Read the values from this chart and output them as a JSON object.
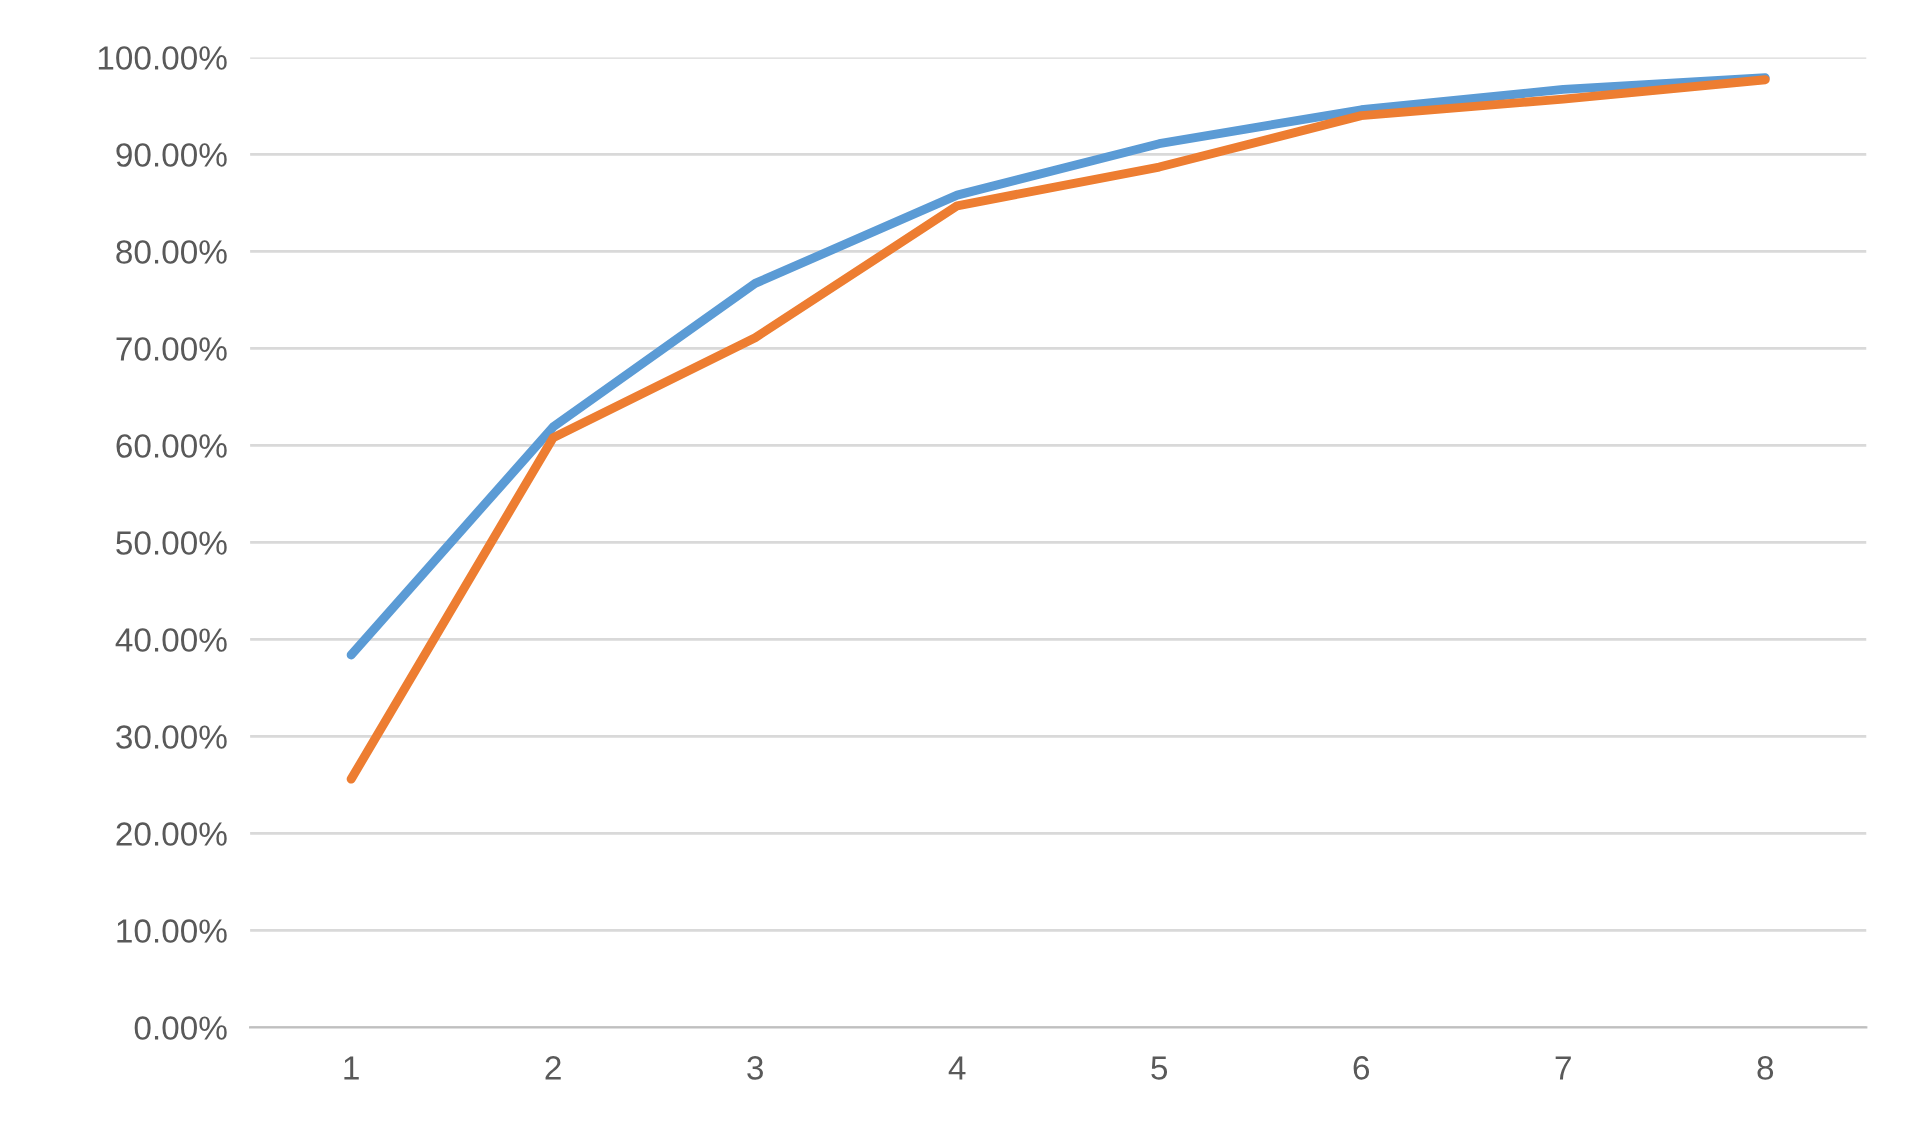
{
  "chart_data": {
    "type": "line",
    "categories": [
      "1",
      "2",
      "3",
      "4",
      "5",
      "6",
      "7",
      "8"
    ],
    "series": [
      {
        "color": "#5b9bd5",
        "values": [
          38.4,
          61.9,
          76.7,
          85.8,
          91.1,
          94.6,
          96.7,
          97.9
        ]
      },
      {
        "color": "#ed7d31",
        "values": [
          25.6,
          60.8,
          71.1,
          84.7,
          88.7,
          94.0,
          95.7,
          97.7
        ]
      }
    ],
    "ylim": [
      0,
      100
    ],
    "yticks": [
      {
        "value": 0,
        "label": "0.00%"
      },
      {
        "value": 10,
        "label": "10.00%"
      },
      {
        "value": 20,
        "label": "20.00%"
      },
      {
        "value": 30,
        "label": "30.00%"
      },
      {
        "value": 40,
        "label": "40.00%"
      },
      {
        "value": 50,
        "label": "50.00%"
      },
      {
        "value": 60,
        "label": "60.00%"
      },
      {
        "value": 70,
        "label": "70.00%"
      },
      {
        "value": 80,
        "label": "80.00%"
      },
      {
        "value": 90,
        "label": "90.00%"
      },
      {
        "value": 100,
        "label": "100.00%"
      }
    ],
    "grid": "y",
    "marker": "none",
    "line_style": "solid"
  }
}
